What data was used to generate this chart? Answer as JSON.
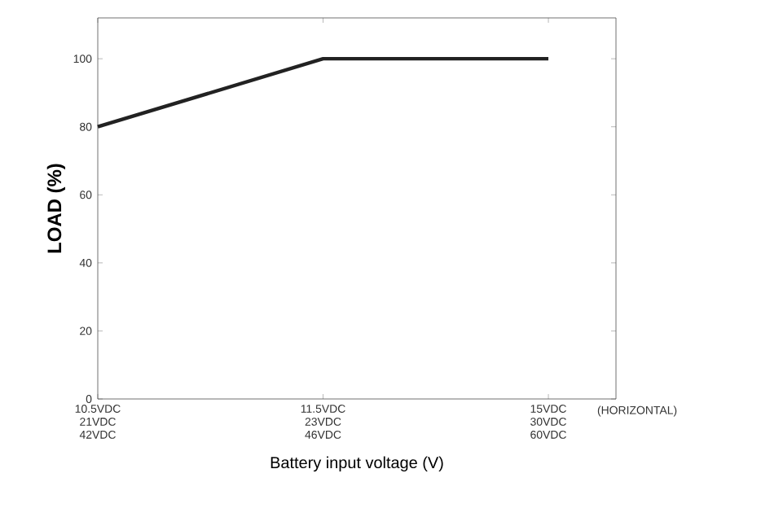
{
  "chart_data": {
    "type": "line",
    "xlabel": "Battery input voltage (V)",
    "ylabel": "**LOAD (%)**",
    "categories": [
      "10.5VDC 21VDC 42VDC",
      "11.5VDC 23VDC 46VDC",
      "15VDC 30VDC 60VDC"
    ],
    "series": [
      {
        "color": "#222222",
        "values": [
          80,
          100,
          100
        ]
      }
    ],
    "ylim": [
      0,
      112
    ],
    "yticks": [
      0,
      20,
      40,
      60,
      80,
      100
    ],
    "annotations": [
      "(HORIZONTAL)"
    ],
    "line_style": "solid"
  }
}
